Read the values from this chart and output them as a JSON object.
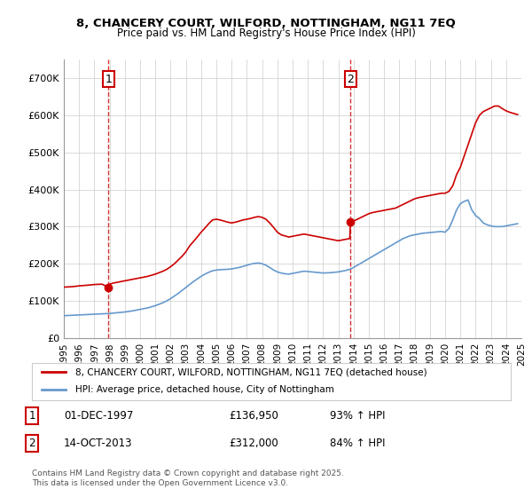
{
  "title1": "8, CHANCERY COURT, WILFORD, NOTTINGHAM, NG11 7EQ",
  "title2": "Price paid vs. HM Land Registry's House Price Index (HPI)",
  "legend_line1": "8, CHANCERY COURT, WILFORD, NOTTINGHAM, NG11 7EQ (detached house)",
  "legend_line2": "HPI: Average price, detached house, City of Nottingham",
  "annotation1_label": "1",
  "annotation1_date": "01-DEC-1997",
  "annotation1_price": "£136,950",
  "annotation1_hpi": "93% ↑ HPI",
  "annotation2_label": "2",
  "annotation2_date": "14-OCT-2013",
  "annotation2_price": "£312,000",
  "annotation2_hpi": "84% ↑ HPI",
  "footnote": "Contains HM Land Registry data © Crown copyright and database right 2025.\nThis data is licensed under the Open Government Licence v3.0.",
  "red_color": "#cc0000",
  "blue_color": "#6699cc",
  "background_color": "#ffffff",
  "grid_color": "#cccccc",
  "ylim": [
    0,
    750000
  ],
  "yticks": [
    0,
    100000,
    200000,
    300000,
    400000,
    500000,
    600000,
    700000
  ],
  "red_x": [
    1995.0,
    1995.25,
    1995.5,
    1995.75,
    1996.0,
    1996.25,
    1996.5,
    1996.75,
    1997.0,
    1997.25,
    1997.5,
    1997.917,
    1998.0,
    1998.25,
    1998.5,
    1998.75,
    1999.0,
    1999.25,
    1999.5,
    1999.75,
    2000.0,
    2000.25,
    2000.5,
    2000.75,
    2001.0,
    2001.25,
    2001.5,
    2001.75,
    2002.0,
    2002.25,
    2002.5,
    2002.75,
    2003.0,
    2003.25,
    2003.5,
    2003.75,
    2004.0,
    2004.25,
    2004.5,
    2004.75,
    2005.0,
    2005.25,
    2005.5,
    2005.75,
    2006.0,
    2006.25,
    2006.5,
    2006.75,
    2007.0,
    2007.25,
    2007.5,
    2007.75,
    2008.0,
    2008.25,
    2008.5,
    2008.75,
    2009.0,
    2009.25,
    2009.5,
    2009.75,
    2010.0,
    2010.25,
    2010.5,
    2010.75,
    2011.0,
    2011.25,
    2011.5,
    2011.75,
    2012.0,
    2012.25,
    2012.5,
    2012.75,
    2013.0,
    2013.25,
    2013.5,
    2013.75,
    2013.792,
    2014.0,
    2014.25,
    2014.5,
    2014.75,
    2015.0,
    2015.25,
    2015.5,
    2015.75,
    2016.0,
    2016.25,
    2016.5,
    2016.75,
    2017.0,
    2017.25,
    2017.5,
    2017.75,
    2018.0,
    2018.25,
    2018.5,
    2018.75,
    2019.0,
    2019.25,
    2019.5,
    2019.75,
    2020.0,
    2020.25,
    2020.5,
    2020.75,
    2021.0,
    2021.25,
    2021.5,
    2021.75,
    2022.0,
    2022.25,
    2022.5,
    2022.75,
    2023.0,
    2023.25,
    2023.5,
    2023.75,
    2024.0,
    2024.25,
    2024.5,
    2024.75
  ],
  "red_y": [
    136950,
    137500,
    138200,
    139000,
    140500,
    141200,
    142000,
    143000,
    144000,
    144500,
    145000,
    136950,
    145000,
    148000,
    150000,
    152000,
    154000,
    156000,
    158000,
    160000,
    162000,
    164000,
    166000,
    169000,
    172000,
    176000,
    180000,
    185000,
    192000,
    200000,
    210000,
    220000,
    232000,
    248000,
    260000,
    272000,
    285000,
    296000,
    308000,
    318000,
    320000,
    318000,
    315000,
    312000,
    310000,
    312000,
    315000,
    318000,
    320000,
    322000,
    325000,
    327000,
    325000,
    320000,
    310000,
    298000,
    285000,
    278000,
    275000,
    272000,
    274000,
    276000,
    278000,
    280000,
    278000,
    276000,
    274000,
    272000,
    270000,
    268000,
    266000,
    264000,
    262000,
    264000,
    266000,
    268000,
    312000,
    315000,
    320000,
    325000,
    330000,
    335000,
    338000,
    340000,
    342000,
    344000,
    346000,
    348000,
    350000,
    355000,
    360000,
    365000,
    370000,
    375000,
    378000,
    380000,
    382000,
    384000,
    386000,
    388000,
    390000,
    390000,
    395000,
    410000,
    440000,
    460000,
    490000,
    520000,
    550000,
    580000,
    600000,
    610000,
    615000,
    620000,
    625000,
    625000,
    618000,
    612000,
    608000,
    605000,
    602000
  ],
  "blue_x": [
    1995.0,
    1995.25,
    1995.5,
    1995.75,
    1996.0,
    1996.25,
    1996.5,
    1996.75,
    1997.0,
    1997.25,
    1997.5,
    1997.75,
    1998.0,
    1998.25,
    1998.5,
    1998.75,
    1999.0,
    1999.25,
    1999.5,
    1999.75,
    2000.0,
    2000.25,
    2000.5,
    2000.75,
    2001.0,
    2001.25,
    2001.5,
    2001.75,
    2002.0,
    2002.25,
    2002.5,
    2002.75,
    2003.0,
    2003.25,
    2003.5,
    2003.75,
    2004.0,
    2004.25,
    2004.5,
    2004.75,
    2005.0,
    2005.25,
    2005.5,
    2005.75,
    2006.0,
    2006.25,
    2006.5,
    2006.75,
    2007.0,
    2007.25,
    2007.5,
    2007.75,
    2008.0,
    2008.25,
    2008.5,
    2008.75,
    2009.0,
    2009.25,
    2009.5,
    2009.75,
    2010.0,
    2010.25,
    2010.5,
    2010.75,
    2011.0,
    2011.25,
    2011.5,
    2011.75,
    2012.0,
    2012.25,
    2012.5,
    2012.75,
    2013.0,
    2013.25,
    2013.5,
    2013.75,
    2014.0,
    2014.25,
    2014.5,
    2014.75,
    2015.0,
    2015.25,
    2015.5,
    2015.75,
    2016.0,
    2016.25,
    2016.5,
    2016.75,
    2017.0,
    2017.25,
    2017.5,
    2017.75,
    2018.0,
    2018.25,
    2018.5,
    2018.75,
    2019.0,
    2019.25,
    2019.5,
    2019.75,
    2020.0,
    2020.25,
    2020.5,
    2020.75,
    2021.0,
    2021.25,
    2021.5,
    2021.75,
    2022.0,
    2022.25,
    2022.5,
    2022.75,
    2023.0,
    2023.25,
    2023.5,
    2023.75,
    2024.0,
    2024.25,
    2024.5,
    2024.75
  ],
  "blue_y": [
    60000,
    60500,
    61000,
    61500,
    62000,
    62500,
    63000,
    63500,
    64000,
    64500,
    65000,
    65500,
    66000,
    67000,
    68000,
    69000,
    70000,
    71500,
    73000,
    75000,
    77000,
    79000,
    81000,
    84000,
    87000,
    91000,
    95000,
    100000,
    106000,
    113000,
    120000,
    128000,
    136000,
    144000,
    152000,
    159000,
    166000,
    172000,
    177000,
    181000,
    183000,
    184000,
    184500,
    185000,
    186000,
    188000,
    190000,
    193000,
    196000,
    199000,
    201000,
    202000,
    200000,
    196000,
    190000,
    183000,
    178000,
    175000,
    173000,
    172000,
    174000,
    176000,
    178000,
    180000,
    179000,
    178000,
    177000,
    176000,
    175000,
    175500,
    176000,
    177000,
    178000,
    180000,
    182000,
    185000,
    190000,
    196000,
    202000,
    208000,
    214000,
    220000,
    226000,
    232000,
    238000,
    244000,
    250000,
    256000,
    262000,
    268000,
    272000,
    276000,
    278000,
    280000,
    282000,
    283000,
    284000,
    285000,
    286000,
    287000,
    285000,
    295000,
    318000,
    345000,
    362000,
    368000,
    372000,
    345000,
    330000,
    322000,
    310000,
    305000,
    302000,
    300000,
    300000,
    300000,
    302000,
    304000,
    306000,
    308000
  ],
  "marker1_x": 1997.917,
  "marker1_y": 136950,
  "marker2_x": 2013.792,
  "marker2_y": 312000,
  "vline1_x": 1997.917,
  "vline2_x": 2013.792,
  "xlim": [
    1995.0,
    2025.0
  ],
  "xtick_years": [
    1995,
    1996,
    1997,
    1998,
    1999,
    2000,
    2001,
    2002,
    2003,
    2004,
    2005,
    2006,
    2007,
    2008,
    2009,
    2010,
    2011,
    2012,
    2013,
    2014,
    2015,
    2016,
    2017,
    2018,
    2019,
    2020,
    2021,
    2022,
    2023,
    2024,
    2025
  ]
}
